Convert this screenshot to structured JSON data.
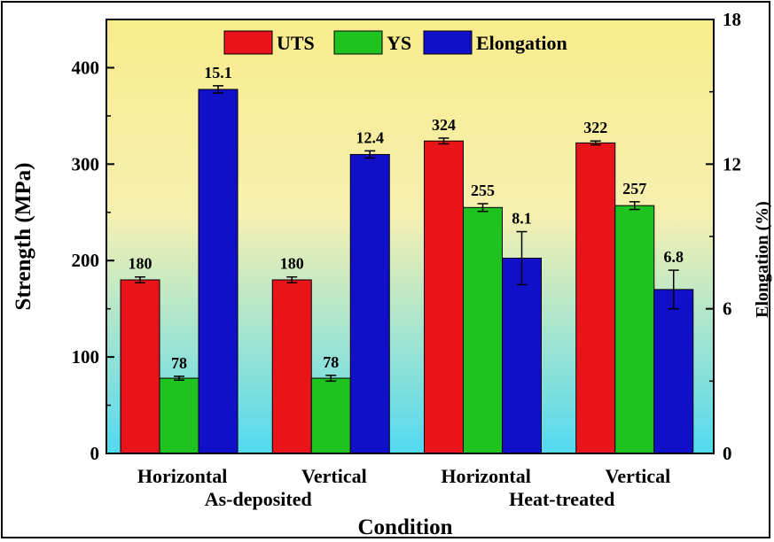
{
  "chart_data": {
    "type": "bar",
    "categories": [
      "Horizontal",
      "Vertical",
      "Horizontal",
      "Vertical"
    ],
    "groups": [
      "As-deposited",
      "Heat-treated"
    ],
    "xlabel": "Condition",
    "ylabel": "Strength (MPa)",
    "y2label": "Elongation (%)",
    "ylim": [
      0,
      450
    ],
    "y2lim": [
      0,
      18
    ],
    "yticks": [
      "0",
      "100",
      "200",
      "300",
      "400"
    ],
    "y2ticks": [
      "0",
      "6",
      "12",
      "18"
    ],
    "legend_position": "top-center",
    "series": [
      {
        "name": "UTS",
        "axis": "left",
        "color": "#e8141a",
        "values": [
          180,
          180,
          324,
          322
        ],
        "errors": [
          3,
          3,
          3,
          2
        ],
        "labels": [
          "180",
          "180",
          "324",
          "322"
        ]
      },
      {
        "name": "YS",
        "axis": "left",
        "color": "#1fc31f",
        "values": [
          78,
          78,
          255,
          257
        ],
        "errors": [
          2,
          3,
          4,
          4
        ],
        "labels": [
          "78",
          "78",
          "255",
          "257"
        ]
      },
      {
        "name": "Elongation",
        "axis": "right",
        "color": "#1010c8",
        "values": [
          15.1,
          12.4,
          8.1,
          6.8
        ],
        "errors": [
          0.15,
          0.15,
          1.1,
          0.8
        ],
        "labels": [
          "15.1",
          "12.4",
          "8.1",
          "6.8"
        ]
      }
    ],
    "background_gradient": [
      "#f9ec8c",
      "#52d9f0"
    ]
  }
}
